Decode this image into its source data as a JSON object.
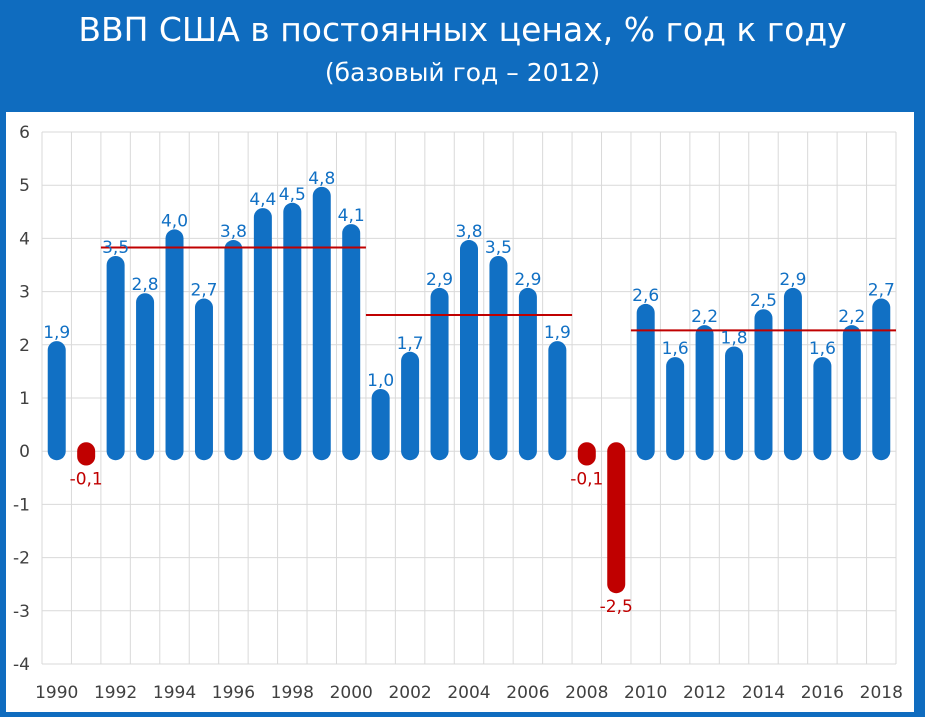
{
  "header": {
    "title": "ВВП США в постоянных ценах, % год к году",
    "subtitle": "(базовый год – 2012)"
  },
  "colors": {
    "background": "#0F6CBF",
    "positive": "#1170C4",
    "negative": "#C00000",
    "positive_label": "#1170C4",
    "negative_label": "#C00000",
    "average_line": "#C00000",
    "grid": "#D9D9D9",
    "tick_label": "#404040"
  },
  "chart_data": {
    "type": "bar",
    "title": "ВВП США в постоянных ценах, % год к году",
    "subtitle": "(базовый год – 2012)",
    "xlabel": "",
    "ylabel": "",
    "ylim": [
      -4,
      6
    ],
    "yticks": [
      "-4",
      "-3",
      "-2",
      "-1",
      "0",
      "1",
      "2",
      "3",
      "4",
      "5",
      "6"
    ],
    "grid": true,
    "legend": "none",
    "categories": [
      1990,
      1991,
      1992,
      1993,
      1994,
      1995,
      1996,
      1997,
      1998,
      1999,
      2000,
      2001,
      2002,
      2003,
      2004,
      2005,
      2006,
      2007,
      2008,
      2009,
      2010,
      2011,
      2012,
      2013,
      2014,
      2015,
      2016,
      2017,
      2018
    ],
    "x_tick_labels": [
      "1990",
      "1992",
      "1994",
      "1996",
      "1998",
      "2000",
      "2002",
      "2004",
      "2006",
      "2008",
      "2010",
      "2012",
      "2014",
      "2016",
      "2018"
    ],
    "values": [
      1.9,
      -0.1,
      3.5,
      2.8,
      4.0,
      2.7,
      3.8,
      4.4,
      4.5,
      4.8,
      4.1,
      1.0,
      1.7,
      2.9,
      3.8,
      3.5,
      2.9,
      1.9,
      -0.1,
      -2.5,
      2.6,
      1.6,
      2.2,
      1.8,
      2.5,
      2.9,
      1.6,
      2.2,
      2.7
    ],
    "data_labels": [
      "1,9",
      "-0,1",
      "3,5",
      "2,8",
      "4,0",
      "2,7",
      "3,8",
      "4,4",
      "4,5",
      "4,8",
      "4,1",
      "1,0",
      "1,7",
      "2,9",
      "3,8",
      "3,5",
      "2,9",
      "1,9",
      "-0,1",
      "-2,5",
      "2,6",
      "1,6",
      "2,2",
      "1,8",
      "2,5",
      "2,9",
      "1,6",
      "2,2",
      "2,7"
    ],
    "average_lines": [
      {
        "from": 1991.5,
        "to": 2000.5,
        "value": 3.83
      },
      {
        "from": 2000.5,
        "to": 2007.5,
        "value": 2.56
      },
      {
        "from": 2009.5,
        "to": 2018.5,
        "value": 2.27
      }
    ]
  }
}
